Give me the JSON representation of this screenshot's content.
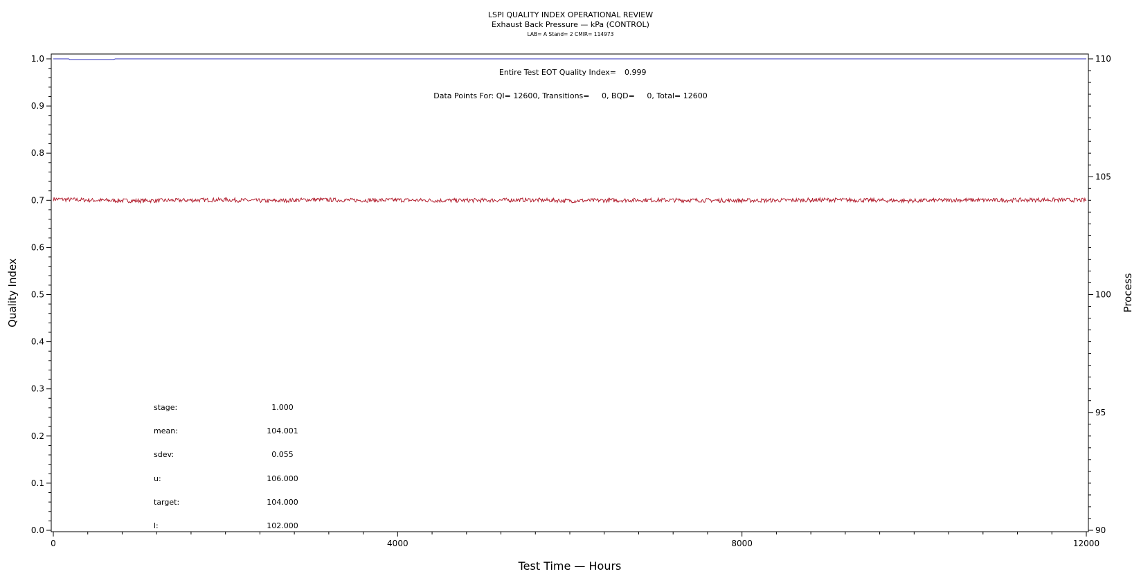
{
  "chart_data": {
    "type": "line",
    "title": "LSPI QUALITY INDEX OPERATIONAL REVIEW",
    "subtitle": "Exhaust Back Pressure — kPa (CONTROL)",
    "subtitle2": "LAB= A Stand= 2 CMIR= 114973",
    "xlabel": "Test Time — Hours",
    "ylabel_left": "Quality Index",
    "ylabel_right": "Process",
    "xlim": [
      0,
      12000
    ],
    "ylim_left": [
      0,
      1
    ],
    "ylim_right": [
      90,
      110
    ],
    "x_ticks": [
      0,
      4000,
      8000,
      12000
    ],
    "x_tick_labels": [
      "0",
      "4000",
      "8000",
      "12000"
    ],
    "y_left_ticks": [
      0.0,
      0.1,
      0.2,
      0.3,
      0.4,
      0.5,
      0.6,
      0.7,
      0.8,
      0.9,
      1.0
    ],
    "y_left_tick_labels": [
      "0.0",
      "0.1",
      "0.2",
      "0.3",
      "0.4",
      "0.5",
      "0.6",
      "0.7",
      "0.8",
      "0.9",
      "1.0"
    ],
    "y_right_ticks": [
      90,
      95,
      100,
      105,
      110
    ],
    "y_right_tick_labels": [
      "90",
      "95",
      "100",
      "105",
      "110"
    ],
    "grid": false,
    "series": [
      {
        "axis": "left",
        "color": "#2b2bb8",
        "x": [
          0,
          180,
          190,
          700,
          720,
          12000
        ],
        "y": [
          1.0,
          1.0,
          0.9985,
          0.9985,
          1.0,
          1.0
        ]
      },
      {
        "axis": "right",
        "color": "#b21f2f",
        "mean": 104.001,
        "sdev": 0.055,
        "x": [
          0,
          500,
          1000,
          1500,
          2000,
          2500,
          3000,
          3500,
          4000,
          4500,
          5000,
          5500,
          6000,
          6500,
          7000,
          7500,
          8000,
          8500,
          9000,
          9500,
          10000,
          10500,
          11000,
          11500,
          12000
        ],
        "y": [
          104.05,
          104.0,
          103.98,
          104.0,
          104.02,
          103.97,
          104.03,
          104.0,
          104.01,
          103.99,
          104.0,
          104.02,
          103.98,
          104.0,
          104.01,
          104.0,
          103.99,
          104.0,
          104.02,
          104.0,
          103.98,
          104.01,
          104.0,
          104.02,
          104.0
        ]
      }
    ],
    "annotations": {
      "eot_label": "Entire Test EOT Quality Index=",
      "eot_value": "0.999",
      "datapoints": "Data Points For: QI= 12600, Transitions=     0, BQD=     0, Total= 12600"
    },
    "stats": [
      {
        "label": "stage:",
        "value": "1.000"
      },
      {
        "label": "mean:",
        "value": "104.001"
      },
      {
        "label": "sdev:",
        "value": "0.055"
      },
      {
        "label": "u:",
        "value": "106.000"
      },
      {
        "label": "target:",
        "value": "104.000"
      },
      {
        "label": "l:",
        "value": "102.000"
      }
    ]
  }
}
